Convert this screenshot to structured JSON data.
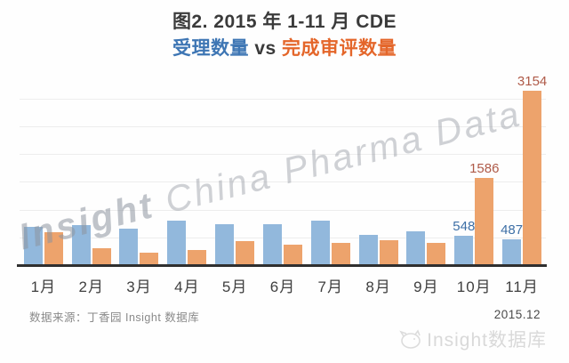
{
  "title": "图2. 2015 年 1-11 月 CDE",
  "subtitle": {
    "series1_label": "受理数量",
    "vs_label": " vs ",
    "series2_label": "完成审评数量"
  },
  "watermark": {
    "bold_part": "Insight",
    "light_part": " China Pharma Data"
  },
  "footer": {
    "source": "数据来源：丁香园 Insight 数据库",
    "date": "2015.12",
    "brand_text": "Insight数据库",
    "brand_icon": "insight-cat-logo-icon"
  },
  "colors": {
    "accepted_bar": "#92b8dc",
    "reviewed_bar": "#eda36c",
    "accepted_label": "#3d6fa6",
    "reviewed_label": "#af5a48",
    "subtitle_blue": "#3e76b4",
    "subtitle_orange": "#e4662a",
    "axis_line": "#2f2f2f",
    "gridline": "#ededed",
    "title_text": "#3a3a3a",
    "source_text": "#8a8a8a",
    "watermark_text": "#b9bfc6"
  },
  "chart_data": {
    "type": "bar",
    "title": "图2. 2015 年 1-11 月 CDE 受理数量 vs 完成审评数量",
    "categories": [
      "1月",
      "2月",
      "3月",
      "4月",
      "5月",
      "6月",
      "7月",
      "8月",
      "9月",
      "10月",
      "11月"
    ],
    "series": [
      {
        "key": "accepted",
        "name": "受理数量",
        "color": "#92b8dc",
        "values": [
          705,
          730,
          675,
          820,
          755,
          755,
          820,
          560,
          620,
          548,
          487
        ],
        "data_labels": [
          null,
          null,
          null,
          null,
          null,
          null,
          null,
          null,
          null,
          "548",
          "487"
        ]
      },
      {
        "key": "reviewed",
        "name": "完成审评数量",
        "color": "#eda36c",
        "values": [
          610,
          325,
          240,
          290,
          450,
          385,
          410,
          465,
          410,
          1586,
          3154
        ],
        "data_labels": [
          null,
          null,
          null,
          null,
          null,
          null,
          null,
          null,
          null,
          "1586",
          "3154"
        ]
      }
    ],
    "xlabel": "",
    "ylabel": "",
    "ylim": [
      0,
      3300
    ],
    "gridline_step": 500,
    "gridline_max": 3000,
    "grid": true,
    "y_axis_tick_labels_visible": false,
    "legend_position": "none"
  }
}
